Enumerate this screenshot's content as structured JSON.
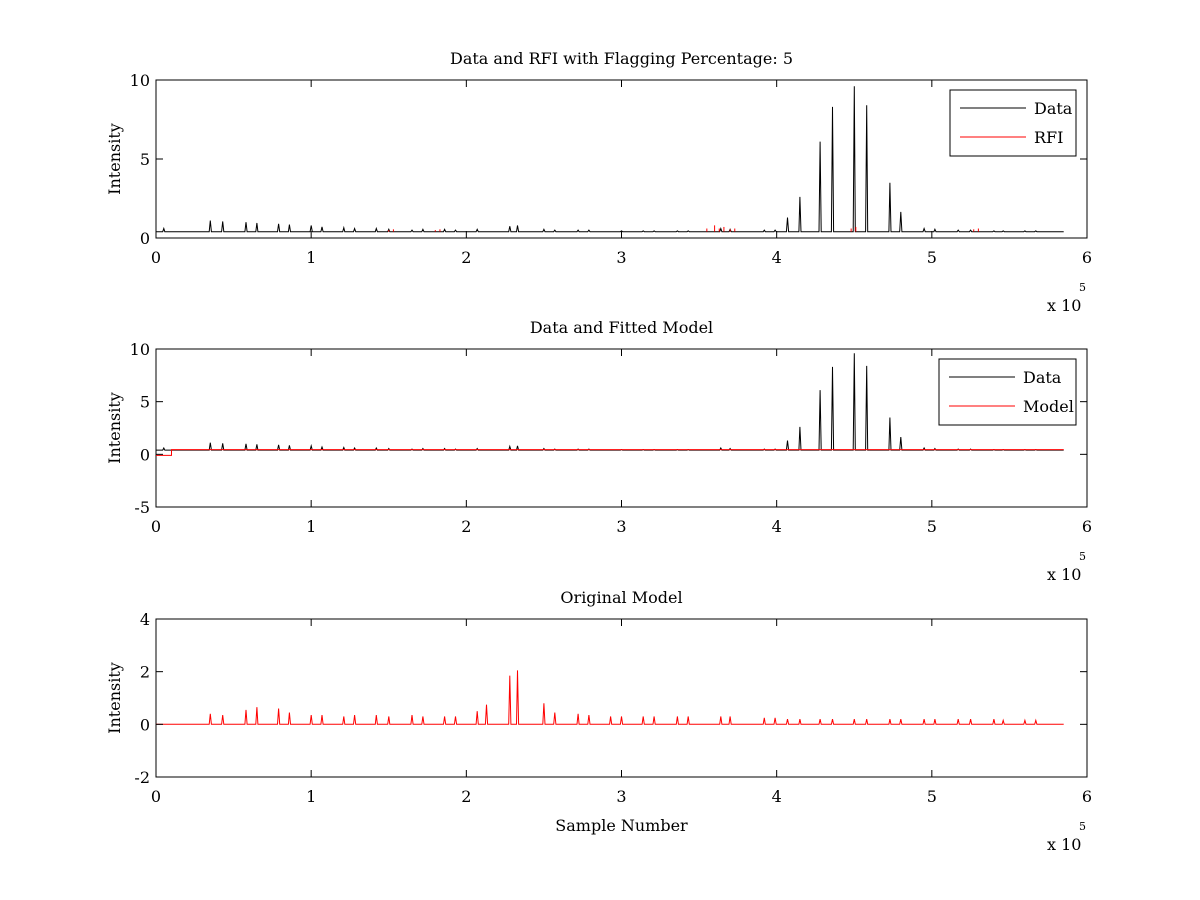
{
  "figure": {
    "background": "#ffffff"
  },
  "chart_data": [
    {
      "type": "line",
      "title": "Data and RFI with Flagging Percentage: 5",
      "xlabel": "",
      "ylabel": "Intensity",
      "xlim": [
        0,
        600000
      ],
      "ylim": [
        0,
        10
      ],
      "xticks": [
        0,
        100000,
        200000,
        300000,
        400000,
        500000,
        600000
      ],
      "xtick_labels": [
        "0",
        "1",
        "2",
        "3",
        "4",
        "5",
        "6"
      ],
      "yticks": [
        0,
        5,
        10
      ],
      "ytick_labels": [
        "0",
        "5",
        "10"
      ],
      "x_exponent": {
        "base": "x 10",
        "power": "5"
      },
      "grid": false,
      "legend": {
        "position": "top-right",
        "entries": [
          "Data",
          "RFI"
        ]
      },
      "series": [
        {
          "name": "Data",
          "color": "#000000",
          "baseline": 0.4,
          "x_end": 585000,
          "peaks": [
            [
              5000,
              0.6
            ],
            [
              35000,
              1.1
            ],
            [
              43000,
              1.05
            ],
            [
              58000,
              1.0
            ],
            [
              65000,
              0.95
            ],
            [
              79000,
              0.9
            ],
            [
              86000,
              0.85
            ],
            [
              100000,
              0.8
            ],
            [
              107000,
              0.7
            ],
            [
              121000,
              0.65
            ],
            [
              128000,
              0.6
            ],
            [
              142000,
              0.6
            ],
            [
              150000,
              0.55
            ],
            [
              165000,
              0.5
            ],
            [
              172000,
              0.55
            ],
            [
              186000,
              0.55
            ],
            [
              193000,
              0.5
            ],
            [
              207000,
              0.55
            ],
            [
              228000,
              0.75
            ],
            [
              233000,
              0.8
            ],
            [
              250000,
              0.55
            ],
            [
              257000,
              0.5
            ],
            [
              272000,
              0.5
            ],
            [
              279000,
              0.5
            ],
            [
              300000,
              0.45
            ],
            [
              314000,
              0.45
            ],
            [
              321000,
              0.45
            ],
            [
              336000,
              0.45
            ],
            [
              343000,
              0.45
            ],
            [
              364000,
              0.6
            ],
            [
              370000,
              0.55
            ],
            [
              392000,
              0.5
            ],
            [
              399000,
              0.5
            ],
            [
              407000,
              1.3
            ],
            [
              415000,
              2.6
            ],
            [
              428000,
              6.1
            ],
            [
              436000,
              8.3
            ],
            [
              450000,
              9.6
            ],
            [
              458000,
              8.4
            ],
            [
              473000,
              3.5
            ],
            [
              480000,
              1.65
            ],
            [
              495000,
              0.6
            ],
            [
              502000,
              0.55
            ],
            [
              517000,
              0.5
            ],
            [
              525000,
              0.5
            ],
            [
              540000,
              0.45
            ],
            [
              546000,
              0.45
            ],
            [
              560000,
              0.45
            ],
            [
              567000,
              0.45
            ]
          ]
        },
        {
          "name": "RFI",
          "color": "#ff0000",
          "x": [
            150000,
            153000,
            180000,
            183000,
            355000,
            360000,
            363000,
            366000,
            370000,
            373000,
            448000,
            451000,
            527000,
            530000
          ],
          "y": [
            0.5,
            0.55,
            0.5,
            0.55,
            0.6,
            0.8,
            0.6,
            0.7,
            0.55,
            0.6,
            0.6,
            0.7,
            0.55,
            0.6
          ]
        }
      ]
    },
    {
      "type": "line",
      "title": "Data and Fitted Model",
      "xlabel": "",
      "ylabel": "Intensity",
      "xlim": [
        0,
        600000
      ],
      "ylim": [
        -5,
        10
      ],
      "xticks": [
        0,
        100000,
        200000,
        300000,
        400000,
        500000,
        600000
      ],
      "xtick_labels": [
        "0",
        "1",
        "2",
        "3",
        "4",
        "5",
        "6"
      ],
      "yticks": [
        -5,
        0,
        5,
        10
      ],
      "ytick_labels": [
        "-5",
        "0",
        "5",
        "10"
      ],
      "x_exponent": {
        "base": "x 10",
        "power": "5"
      },
      "grid": false,
      "legend": {
        "position": "top-right",
        "entries": [
          "Data",
          "Model"
        ]
      },
      "series": [
        {
          "name": "Data",
          "color": "#000000",
          "baseline": 0.4,
          "x_end": 585000,
          "peaks": [
            [
              5000,
              0.6
            ],
            [
              35000,
              1.1
            ],
            [
              43000,
              1.05
            ],
            [
              58000,
              1.0
            ],
            [
              65000,
              0.95
            ],
            [
              79000,
              0.9
            ],
            [
              86000,
              0.85
            ],
            [
              100000,
              0.8
            ],
            [
              107000,
              0.7
            ],
            [
              121000,
              0.65
            ],
            [
              128000,
              0.6
            ],
            [
              142000,
              0.6
            ],
            [
              150000,
              0.55
            ],
            [
              165000,
              0.5
            ],
            [
              172000,
              0.55
            ],
            [
              186000,
              0.55
            ],
            [
              193000,
              0.5
            ],
            [
              207000,
              0.55
            ],
            [
              228000,
              0.75
            ],
            [
              233000,
              0.8
            ],
            [
              250000,
              0.55
            ],
            [
              257000,
              0.5
            ],
            [
              272000,
              0.5
            ],
            [
              279000,
              0.5
            ],
            [
              300000,
              0.45
            ],
            [
              314000,
              0.45
            ],
            [
              321000,
              0.45
            ],
            [
              336000,
              0.45
            ],
            [
              343000,
              0.45
            ],
            [
              364000,
              0.6
            ],
            [
              370000,
              0.55
            ],
            [
              392000,
              0.5
            ],
            [
              399000,
              0.5
            ],
            [
              407000,
              1.3
            ],
            [
              415000,
              2.6
            ],
            [
              428000,
              6.1
            ],
            [
              436000,
              8.3
            ],
            [
              450000,
              9.6
            ],
            [
              458000,
              8.4
            ],
            [
              473000,
              3.5
            ],
            [
              480000,
              1.65
            ],
            [
              495000,
              0.6
            ],
            [
              502000,
              0.55
            ],
            [
              517000,
              0.5
            ],
            [
              525000,
              0.5
            ],
            [
              540000,
              0.45
            ],
            [
              546000,
              0.45
            ],
            [
              560000,
              0.45
            ],
            [
              567000,
              0.45
            ]
          ]
        },
        {
          "name": "Model",
          "color": "#ff0000",
          "x": [
            0,
            10000,
            10000,
            585000
          ],
          "y": [
            -0.1,
            -0.1,
            0.45,
            0.45
          ]
        }
      ]
    },
    {
      "type": "line",
      "title": "Original Model",
      "xlabel": "Sample Number",
      "ylabel": "Intensity",
      "xlim": [
        0,
        600000
      ],
      "ylim": [
        -2,
        4
      ],
      "xticks": [
        0,
        100000,
        200000,
        300000,
        400000,
        500000,
        600000
      ],
      "xtick_labels": [
        "0",
        "1",
        "2",
        "3",
        "4",
        "5",
        "6"
      ],
      "yticks": [
        -2,
        0,
        2,
        4
      ],
      "ytick_labels": [
        "-2",
        "0",
        "2",
        "4"
      ],
      "x_exponent": {
        "base": "x 10",
        "power": "5"
      },
      "grid": false,
      "legend": null,
      "series": [
        {
          "name": "",
          "color": "#ff0000",
          "baseline": 0,
          "x_end": 585000,
          "peaks": [
            [
              35000,
              0.4
            ],
            [
              43000,
              0.35
            ],
            [
              58000,
              0.55
            ],
            [
              65000,
              0.65
            ],
            [
              79000,
              0.6
            ],
            [
              86000,
              0.45
            ],
            [
              100000,
              0.35
            ],
            [
              107000,
              0.35
            ],
            [
              121000,
              0.3
            ],
            [
              128000,
              0.35
            ],
            [
              142000,
              0.35
            ],
            [
              150000,
              0.3
            ],
            [
              165000,
              0.35
            ],
            [
              172000,
              0.3
            ],
            [
              186000,
              0.3
            ],
            [
              193000,
              0.3
            ],
            [
              207000,
              0.5
            ],
            [
              213000,
              0.75
            ],
            [
              228000,
              1.85
            ],
            [
              233000,
              2.05
            ],
            [
              250000,
              0.8
            ],
            [
              257000,
              0.45
            ],
            [
              272000,
              0.4
            ],
            [
              279000,
              0.35
            ],
            [
              293000,
              0.3
            ],
            [
              300000,
              0.3
            ],
            [
              314000,
              0.3
            ],
            [
              321000,
              0.3
            ],
            [
              336000,
              0.3
            ],
            [
              343000,
              0.3
            ],
            [
              364000,
              0.3
            ],
            [
              370000,
              0.3
            ],
            [
              392000,
              0.25
            ],
            [
              399000,
              0.25
            ],
            [
              407000,
              0.2
            ],
            [
              415000,
              0.2
            ],
            [
              428000,
              0.2
            ],
            [
              436000,
              0.2
            ],
            [
              450000,
              0.2
            ],
            [
              458000,
              0.2
            ],
            [
              473000,
              0.2
            ],
            [
              480000,
              0.2
            ],
            [
              495000,
              0.2
            ],
            [
              502000,
              0.2
            ],
            [
              517000,
              0.2
            ],
            [
              525000,
              0.2
            ],
            [
              540000,
              0.2
            ],
            [
              546000,
              0.15
            ],
            [
              560000,
              0.15
            ],
            [
              567000,
              0.15
            ]
          ]
        }
      ]
    }
  ]
}
